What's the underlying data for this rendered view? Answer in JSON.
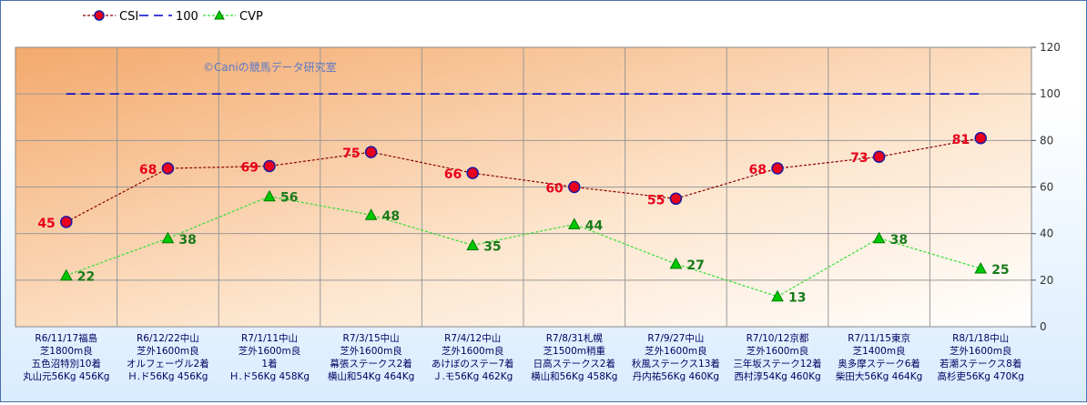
{
  "chart_data": {
    "type": "line",
    "watermark": "©Caniの競馬データ研究室",
    "y_axis": {
      "min": 0,
      "max": 120,
      "step": 20,
      "ticks": [
        "0",
        "20",
        "40",
        "60",
        "80",
        "100",
        "120"
      ]
    },
    "grid": true,
    "legend_position": "top-left",
    "categories": [
      [
        "R6/11/17福島",
        "芝1800m良",
        "五色沼特別10着",
        "丸山元56Kg 456Kg"
      ],
      [
        "R6/12/22中山",
        "芝外1600m良",
        "オルフェーヴル2着",
        "Ｈ.ド56Kg 456Kg"
      ],
      [
        "R7/1/11中山",
        "芝外1600m良",
        "1着",
        "Ｈ.ド56Kg 458Kg"
      ],
      [
        "R7/3/15中山",
        "芝外1600m良",
        "幕張ステークス2着",
        "横山和54Kg 464Kg"
      ],
      [
        "R7/4/12中山",
        "芝外1600m良",
        "あけぼのステー7着",
        "Ｊ.モ56Kg 462Kg"
      ],
      [
        "R7/8/31札幌",
        "芝1500m稍重",
        "日高ステークス2着",
        "横山和56Kg 458Kg"
      ],
      [
        "R7/9/27中山",
        "芝外1600m良",
        "秋風ステークス13着",
        "丹内祐56Kg 460Kg"
      ],
      [
        "R7/10/12京都",
        "芝外1600m良",
        "三年坂ステーク12着",
        "西村淳54Kg 460Kg"
      ],
      [
        "R7/11/15東京",
        "芝1400m良",
        "奥多摩ステーク6着",
        "柴田大56Kg 464Kg"
      ],
      [
        "R8/1/18中山",
        "芝外1600m良",
        "若潮ステークス8着",
        "高杉吏56Kg 470Kg"
      ]
    ],
    "series": [
      {
        "name": "CSI",
        "values": [
          45,
          68,
          69,
          75,
          66,
          60,
          55,
          68,
          73,
          81
        ],
        "line_color": "#8b0000",
        "marker_fill": "#e8001c",
        "marker_stroke": "#1a1aa0",
        "label_color": "#e8001c",
        "label_side": "left"
      },
      {
        "name": "100",
        "values": [
          100,
          100,
          100,
          100,
          100,
          100,
          100,
          100,
          100,
          100
        ],
        "line_color": "#0000cc",
        "dashed": true,
        "show_markers": false,
        "show_labels": false
      },
      {
        "name": "CVP",
        "values": [
          22,
          38,
          56,
          48,
          35,
          44,
          27,
          13,
          38,
          25
        ],
        "line_color": "#33dd33",
        "marker_fill": "#00c800",
        "marker_stroke": "#007a00",
        "label_color": "#1a7a1a",
        "label_side": "right"
      }
    ]
  }
}
